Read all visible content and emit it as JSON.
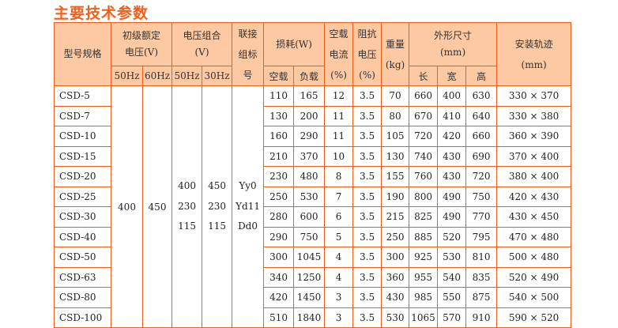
{
  "title": "主要技术参数",
  "header": {
    "model": "型号规格",
    "primary_voltage": [
      "初级额定",
      "电压(V)"
    ],
    "voltage_combo": [
      "电压组合",
      "(V)"
    ],
    "connection": [
      "联接",
      "组标",
      "号"
    ],
    "loss": "损耗(W)",
    "noload_current": [
      "空载",
      "电流",
      "(%)"
    ],
    "impedance_voltage": [
      "阻抗",
      "电压",
      "(%)"
    ],
    "weight": [
      "重量",
      "(kg)"
    ],
    "dimensions": [
      "外形尺寸",
      "(mm)"
    ],
    "mounting": [
      "安装轨迹",
      "(mm)"
    ],
    "sub": {
      "hz50a": "50Hz",
      "hz60": "60Hz",
      "hz50b": "50Hz",
      "hz30": "30Hz",
      "loss_noload": "空载",
      "loss_load": "负载",
      "length": "长",
      "width": "宽",
      "height": "高"
    }
  },
  "merged": {
    "primary_50hz": "400",
    "primary_60hz": "450",
    "combo_50hz": [
      "400",
      "230",
      "115"
    ],
    "combo_30hz": [
      "450",
      "230",
      "115"
    ],
    "connection": [
      "Yy0",
      "Yd11",
      "Dd0"
    ]
  },
  "rows": [
    {
      "model": "CSD-5",
      "loss_noload": "110",
      "loss_load": "165",
      "current": "12",
      "impedance": "3.5",
      "weight": "70",
      "length": "660",
      "width": "400",
      "height": "630",
      "mounting": "330 × 370"
    },
    {
      "model": "CSD-7",
      "loss_noload": "130",
      "loss_load": "200",
      "current": "11",
      "impedance": "3.5",
      "weight": "80",
      "length": "670",
      "width": "410",
      "height": "640",
      "mounting": "330 × 380"
    },
    {
      "model": "CSD-10",
      "loss_noload": "160",
      "loss_load": "290",
      "current": "11",
      "impedance": "3.5",
      "weight": "105",
      "length": "720",
      "width": "420",
      "height": "660",
      "mounting": "360 × 390"
    },
    {
      "model": "CSD-15",
      "loss_noload": "210",
      "loss_load": "370",
      "current": "10",
      "impedance": "3.5",
      "weight": "130",
      "length": "740",
      "width": "430",
      "height": "690",
      "mounting": "370 × 400"
    },
    {
      "model": "CSD-20",
      "loss_noload": "230",
      "loss_load": "480",
      "current": "8",
      "impedance": "3.5",
      "weight": "155",
      "length": "760",
      "width": "430",
      "height": "720",
      "mounting": "380 × 400"
    },
    {
      "model": "CSD-25",
      "loss_noload": "250",
      "loss_load": "530",
      "current": "7",
      "impedance": "3.5",
      "weight": "190",
      "length": "800",
      "width": "490",
      "height": "750",
      "mounting": "420 × 430"
    },
    {
      "model": "CSD-30",
      "loss_noload": "280",
      "loss_load": "600",
      "current": "6",
      "impedance": "3.5",
      "weight": "215",
      "length": "825",
      "width": "490",
      "height": "770",
      "mounting": "430 × 450"
    },
    {
      "model": "CSD-40",
      "loss_noload": "290",
      "loss_load": "750",
      "current": "5",
      "impedance": "3.5",
      "weight": "250",
      "length": "885",
      "width": "520",
      "height": "795",
      "mounting": "470 × 480"
    },
    {
      "model": "CSD-50",
      "loss_noload": "300",
      "loss_load": "1045",
      "current": "4",
      "impedance": "3.5",
      "weight": "300",
      "length": "925",
      "width": "530",
      "height": "810",
      "mounting": "500 × 480"
    },
    {
      "model": "CSD-63",
      "loss_noload": "340",
      "loss_load": "1250",
      "current": "4",
      "impedance": "3.5",
      "weight": "360",
      "length": "955",
      "width": "540",
      "height": "835",
      "mounting": "520 × 490"
    },
    {
      "model": "CSD-80",
      "loss_noload": "420",
      "loss_load": "1450",
      "current": "3",
      "impedance": "3.5",
      "weight": "430",
      "length": "985",
      "width": "550",
      "height": "875",
      "mounting": "540 × 500"
    },
    {
      "model": "CSD-100",
      "loss_noload": "510",
      "loss_load": "1840",
      "current": "3",
      "impedance": "3.5",
      "weight": "530",
      "length": "1065",
      "width": "570",
      "height": "910",
      "mounting": "590 × 520"
    }
  ],
  "colors": {
    "title": "#f0601a",
    "header_bg": "#fcc9a2",
    "border": "#e8601c"
  }
}
